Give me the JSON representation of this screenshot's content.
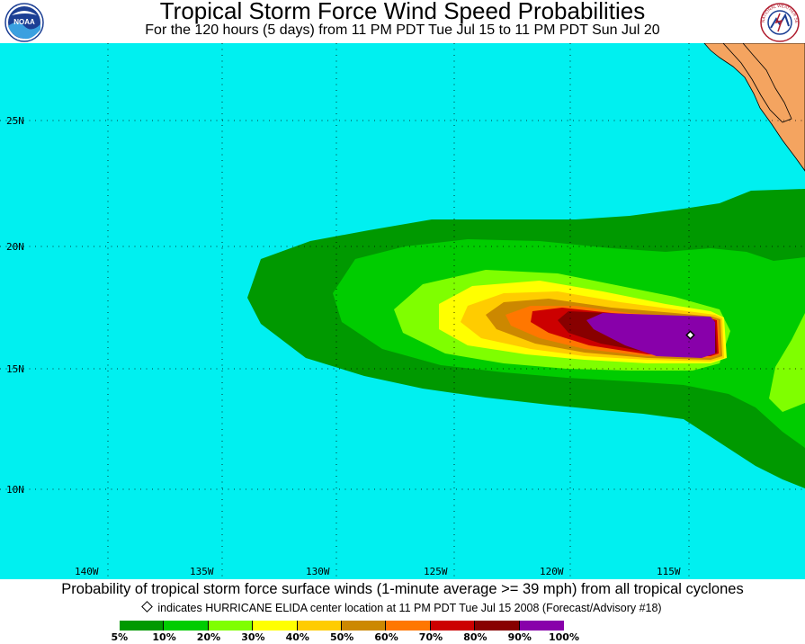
{
  "header": {
    "title": "Tropical Storm Force Wind Speed Probabilities",
    "subtitle": "For the 120 hours (5 days) from 11 PM PDT Tue Jul 15 to 11 PM PDT Sun Jul 20",
    "left_logo_text": "NOAA",
    "right_logo_text": "NATIONAL WEATHER SERVICE"
  },
  "map": {
    "ocean_color": "#00f0f0",
    "land_color": "#f4a460",
    "longitude_labels": [
      "140W",
      "135W",
      "130W",
      "125W",
      "120W",
      "115W"
    ],
    "latitude_labels": [
      "25N",
      "20N",
      "15N",
      "10N"
    ],
    "storm_marker": "diamond-icon"
  },
  "footer": {
    "caption": "Probability of tropical storm force surface winds (1-minute average >= 39 mph) from all tropical cyclones",
    "note": "indicates HURRICANE ELIDA center location at 11 PM PDT Tue Jul 15 2008 (Forecast/Advisory #18)",
    "legend_colors": [
      "#009900",
      "#00cc00",
      "#7fff00",
      "#ffff00",
      "#ffcc00",
      "#cc8800",
      "#ff7700",
      "#cc0000",
      "#880000",
      "#8800aa"
    ],
    "legend_labels": [
      "5%",
      "10%",
      "20%",
      "30%",
      "40%",
      "50%",
      "60%",
      "70%",
      "80%",
      "90%",
      "100%"
    ]
  }
}
